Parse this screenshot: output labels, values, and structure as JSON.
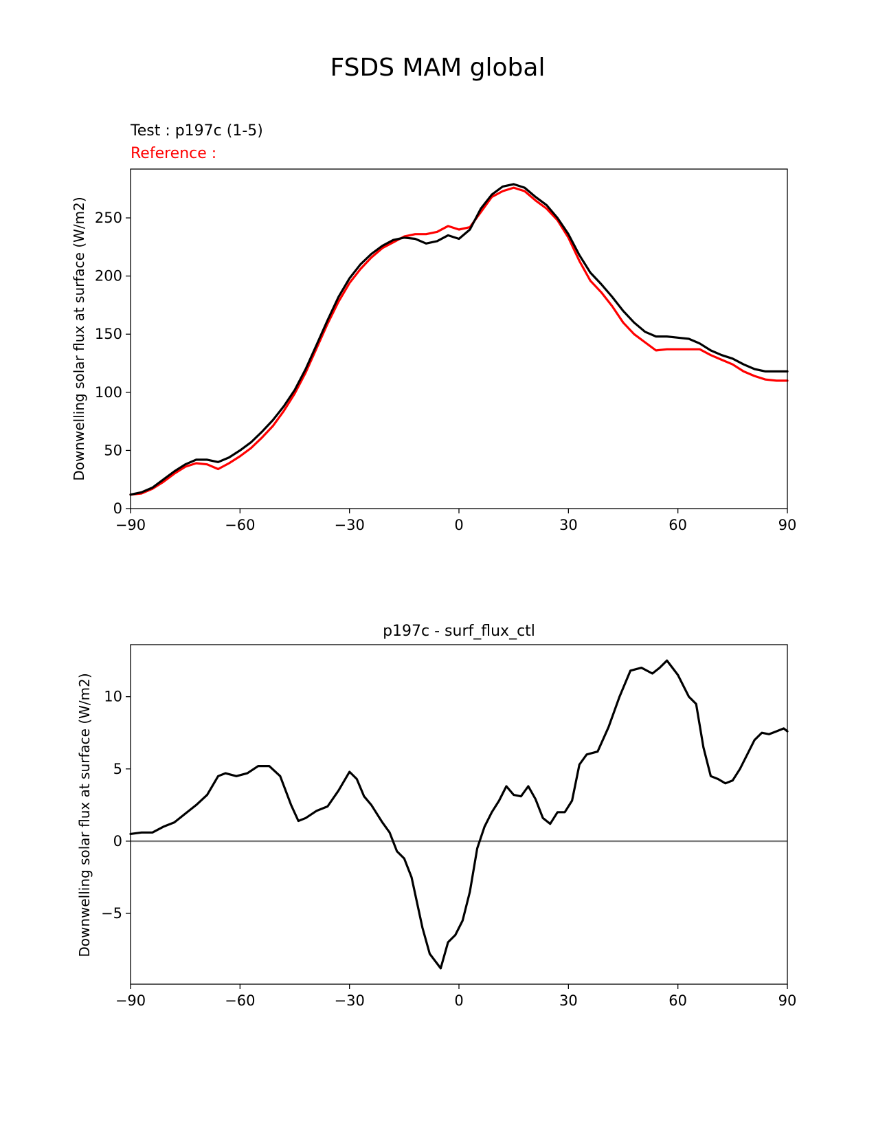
{
  "figure": {
    "suptitle": "FSDS MAM global"
  },
  "chart_data": [
    {
      "type": "line",
      "title_test": "Test : p197c (1-5)",
      "title_reference": "Reference :",
      "xlabel": "",
      "ylabel": "Downwelling solar flux at surface (W/m2)",
      "xlim": [
        -90,
        90
      ],
      "ylim": [
        0,
        292
      ],
      "xticks": [
        -90,
        -60,
        -30,
        0,
        30,
        60,
        90
      ],
      "yticks": [
        0,
        50,
        100,
        150,
        200,
        250
      ],
      "grid": false,
      "colors": {
        "test": "#000000",
        "reference": "#ff0000"
      },
      "series": [
        {
          "role": "test",
          "x": [
            -90,
            -87,
            -84,
            -81,
            -78,
            -75,
            -72,
            -69,
            -66,
            -63,
            -60,
            -57,
            -54,
            -51,
            -48,
            -45,
            -42,
            -39,
            -36,
            -33,
            -30,
            -27,
            -24,
            -21,
            -18,
            -15,
            -12,
            -9,
            -6,
            -3,
            0,
            3,
            6,
            9,
            12,
            15,
            18,
            21,
            24,
            27,
            30,
            33,
            36,
            39,
            42,
            45,
            48,
            51,
            54,
            57,
            60,
            63,
            66,
            69,
            72,
            75,
            78,
            81,
            84,
            87,
            90
          ],
          "values": [
            12,
            14,
            18,
            25,
            32,
            38,
            42,
            42,
            40,
            44,
            50,
            57,
            66,
            76,
            88,
            102,
            120,
            141,
            162,
            182,
            198,
            210,
            219,
            226,
            231,
            233,
            232,
            228,
            230,
            235,
            232,
            240,
            258,
            270,
            277,
            279,
            276,
            268,
            261,
            250,
            236,
            218,
            203,
            193,
            182,
            170,
            160,
            152,
            148,
            148,
            147,
            146,
            142,
            136,
            132,
            129,
            124,
            120,
            118,
            118,
            118
          ]
        },
        {
          "role": "reference",
          "x": [
            -90,
            -87,
            -84,
            -81,
            -78,
            -75,
            -72,
            -69,
            -66,
            -63,
            -60,
            -57,
            -54,
            -51,
            -48,
            -45,
            -42,
            -39,
            -36,
            -33,
            -30,
            -27,
            -24,
            -21,
            -18,
            -15,
            -12,
            -9,
            -6,
            -3,
            0,
            3,
            6,
            9,
            12,
            15,
            18,
            21,
            24,
            27,
            30,
            33,
            36,
            39,
            42,
            45,
            48,
            51,
            54,
            57,
            60,
            63,
            66,
            69,
            72,
            75,
            78,
            81,
            84,
            87,
            90
          ],
          "values": [
            12,
            13,
            17,
            23,
            30,
            36,
            39,
            38,
            34,
            39,
            45,
            52,
            61,
            71,
            84,
            99,
            117,
            138,
            159,
            178,
            194,
            206,
            216,
            224,
            229,
            234,
            236,
            236,
            238,
            243,
            240,
            242,
            255,
            268,
            273,
            276,
            273,
            265,
            258,
            248,
            233,
            213,
            196,
            186,
            174,
            160,
            150,
            143,
            136,
            137,
            137,
            137,
            137,
            132,
            128,
            124,
            118,
            114,
            111,
            110,
            110
          ]
        }
      ]
    },
    {
      "type": "line",
      "title": "p197c - surf_flux_ctl",
      "xlabel": "",
      "ylabel": "Downwelling solar flux at surface (W/m2)",
      "xlim": [
        -90,
        90
      ],
      "ylim": [
        -9.9,
        13.6
      ],
      "xticks": [
        -90,
        -60,
        -30,
        0,
        30,
        60,
        90
      ],
      "yticks": [
        -5,
        0,
        5,
        10
      ],
      "grid": false,
      "zero_line_color": "#808080",
      "series": [
        {
          "role": "difference",
          "x": [
            -90,
            -87,
            -84,
            -81,
            -78,
            -75,
            -72,
            -69,
            -66,
            -64,
            -61,
            -58,
            -55,
            -52,
            -49,
            -46,
            -44,
            -42,
            -39,
            -36,
            -33,
            -30,
            -28,
            -26,
            -24,
            -21,
            -19,
            -17,
            -15,
            -13,
            -10,
            -8,
            -5,
            -3,
            -1,
            1,
            3,
            5,
            7,
            9,
            11,
            13,
            15,
            17,
            19,
            21,
            23,
            25,
            27,
            29,
            31,
            33,
            35,
            38,
            41,
            44,
            47,
            50,
            53,
            55,
            57,
            60,
            63,
            65,
            67,
            69,
            71,
            73,
            75,
            77,
            79,
            81,
            83,
            85,
            87,
            89,
            90
          ],
          "values": [
            0.5,
            0.6,
            0.6,
            1.0,
            1.3,
            1.9,
            2.5,
            3.2,
            4.5,
            4.7,
            4.5,
            4.7,
            5.2,
            5.2,
            4.5,
            2.5,
            1.4,
            1.6,
            2.1,
            2.4,
            3.5,
            4.8,
            4.3,
            3.1,
            2.5,
            1.3,
            0.6,
            -0.7,
            -1.2,
            -2.5,
            -6.0,
            -7.8,
            -8.8,
            -7.0,
            -6.5,
            -5.5,
            -3.5,
            -0.5,
            1.0,
            2.0,
            2.8,
            3.8,
            3.2,
            3.1,
            3.8,
            2.9,
            1.6,
            1.2,
            2.0,
            2.0,
            2.8,
            5.3,
            6.0,
            6.2,
            7.9,
            10.0,
            11.8,
            12.0,
            11.6,
            12.0,
            12.5,
            11.5,
            10.0,
            9.5,
            6.5,
            4.5,
            4.3,
            4.0,
            4.2,
            5.0,
            6.0,
            7.0,
            7.5,
            7.4,
            7.6,
            7.8,
            7.6
          ]
        }
      ]
    }
  ]
}
